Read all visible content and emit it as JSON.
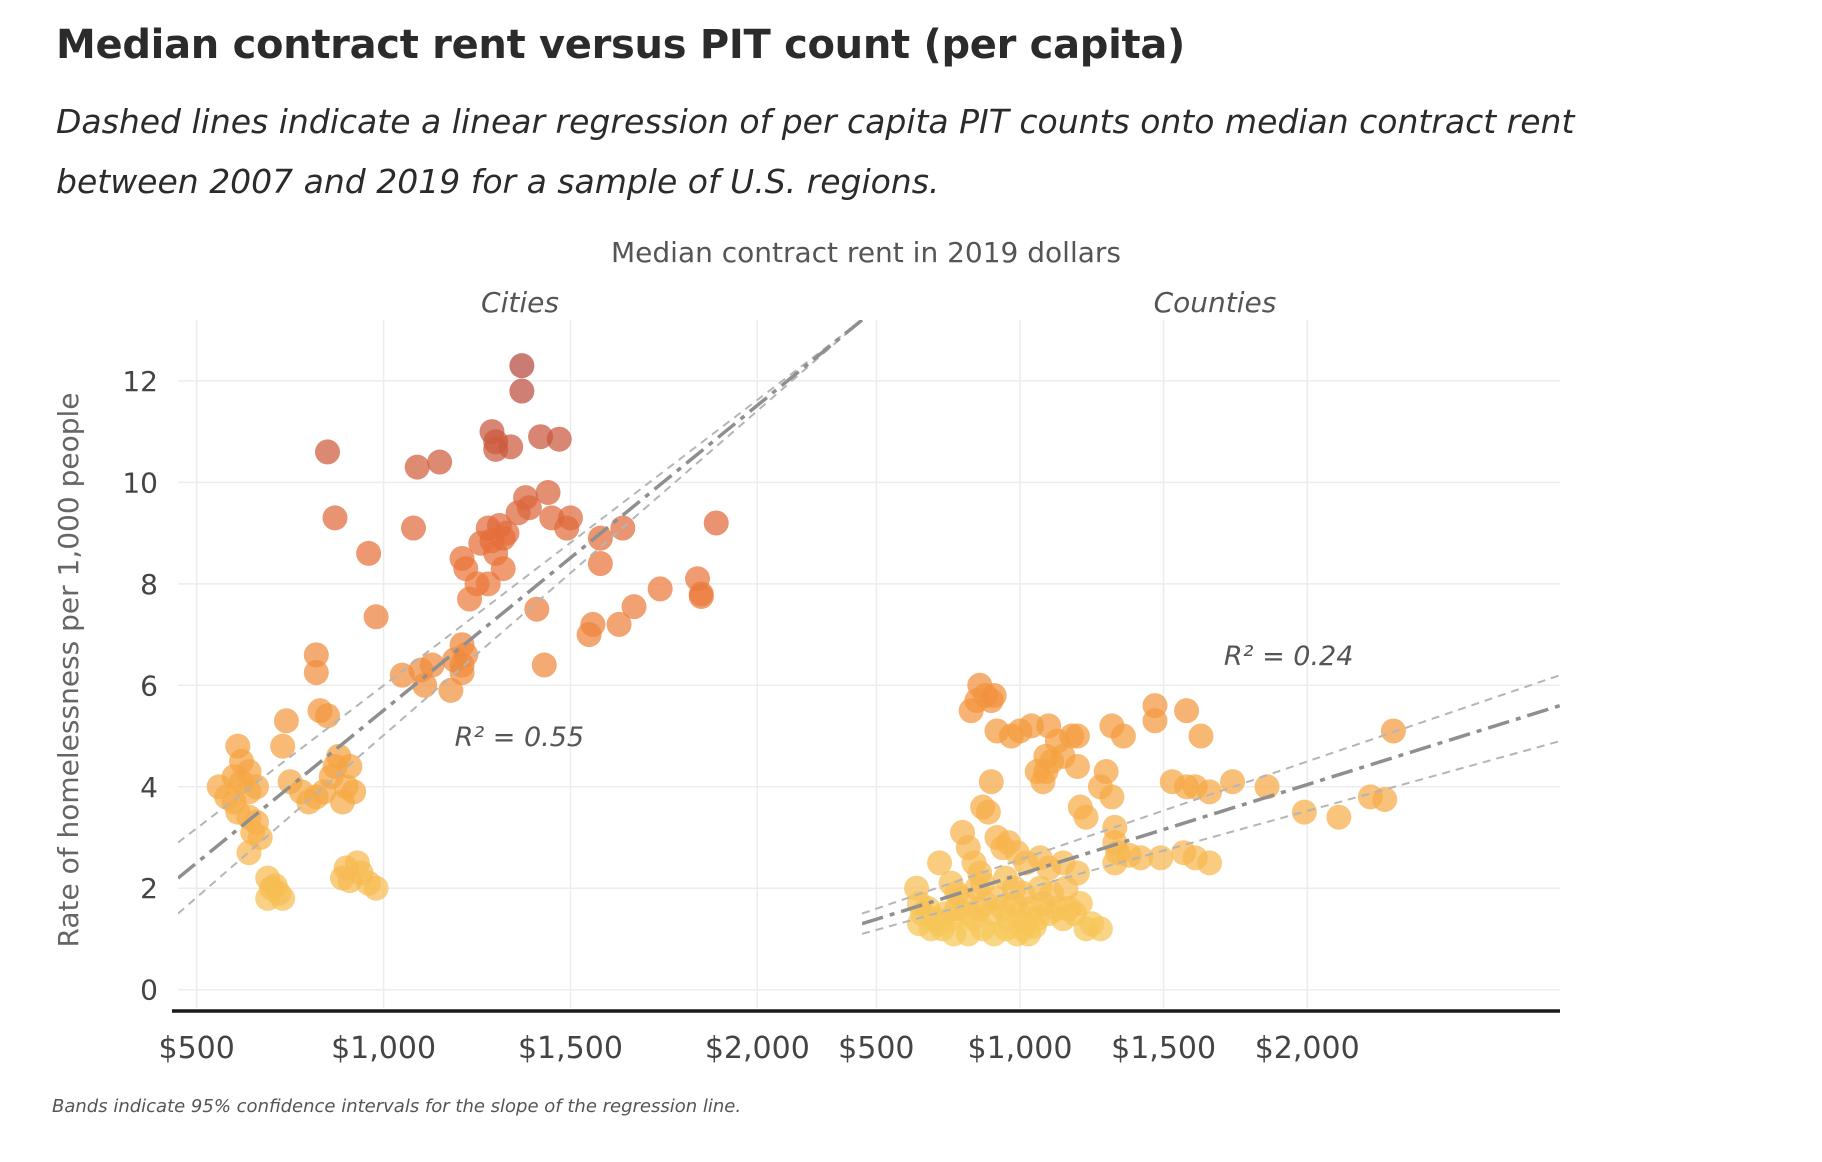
{
  "title": "Median contract rent versus PIT count (per capita)",
  "subtitle": "Dashed lines indicate a linear regression of per capita PIT counts onto median contract rent between 2007 and 2019 for a sample of U.S. regions.",
  "footnote": "Bands indicate 95% confidence intervals for the slope of the regression line.",
  "chart_data": {
    "type": "scatter",
    "xlabel": "Median contract rent in 2019 dollars",
    "ylabel": "Rate of homelessness per 1,000 people",
    "y_ticks": [
      "0",
      "2",
      "4",
      "6",
      "8",
      "10",
      "12"
    ],
    "x_ticks": [
      "$500",
      "$1,000",
      "$1,500",
      "$2,000"
    ],
    "grid": true,
    "color_scale": [
      "#f7c85a",
      "#f59f3f",
      "#e9713a",
      "#b6493f"
    ],
    "panels": [
      {
        "name": "Cities",
        "xlim": [
          450,
          2280
        ],
        "ylim": [
          -0.4,
          13.2
        ],
        "r2_label": "R² = 0.55",
        "r2_pos": [
          1190,
          4.8
        ],
        "regression": {
          "x0": 450,
          "x1": 2280,
          "y0": 2.2,
          "y1": 13.2,
          "upper0": 2.9,
          "upper1": 13.2,
          "lower0": 1.5,
          "lower1": 13.2
        },
        "points": [
          [
            1370,
            12.3
          ],
          [
            1370,
            11.8
          ],
          [
            850,
            10.6
          ],
          [
            1090,
            10.3
          ],
          [
            1150,
            10.4
          ],
          [
            1290,
            11.0
          ],
          [
            1300,
            10.8
          ],
          [
            1300,
            10.65
          ],
          [
            1340,
            10.7
          ],
          [
            1420,
            10.9
          ],
          [
            1470,
            10.85
          ],
          [
            870,
            9.3
          ],
          [
            1080,
            9.1
          ],
          [
            960,
            8.6
          ],
          [
            980,
            7.35
          ],
          [
            1380,
            9.7
          ],
          [
            1390,
            9.5
          ],
          [
            1360,
            9.4
          ],
          [
            1440,
            9.8
          ],
          [
            1450,
            9.3
          ],
          [
            1490,
            9.1
          ],
          [
            1500,
            9.3
          ],
          [
            1580,
            8.9
          ],
          [
            1640,
            9.1
          ],
          [
            1890,
            9.2
          ],
          [
            1280,
            9.1
          ],
          [
            1310,
            9.15
          ],
          [
            1330,
            9.0
          ],
          [
            1260,
            8.8
          ],
          [
            1290,
            8.85
          ],
          [
            1300,
            8.6
          ],
          [
            1320,
            8.9
          ],
          [
            1210,
            8.5
          ],
          [
            1220,
            8.3
          ],
          [
            1250,
            8.0
          ],
          [
            1280,
            8.0
          ],
          [
            1320,
            8.3
          ],
          [
            1580,
            8.4
          ],
          [
            1840,
            8.1
          ],
          [
            1850,
            7.8
          ],
          [
            1850,
            7.75
          ],
          [
            1740,
            7.9
          ],
          [
            1670,
            7.55
          ],
          [
            1630,
            7.2
          ],
          [
            1560,
            7.2
          ],
          [
            1550,
            7.0
          ],
          [
            1410,
            7.5
          ],
          [
            1230,
            7.7
          ],
          [
            1210,
            6.8
          ],
          [
            1220,
            6.6
          ],
          [
            1210,
            6.4
          ],
          [
            1210,
            6.25
          ],
          [
            1190,
            6.5
          ],
          [
            1180,
            5.9
          ],
          [
            1130,
            6.4
          ],
          [
            1100,
            6.3
          ],
          [
            1110,
            6.0
          ],
          [
            1050,
            6.2
          ],
          [
            1430,
            6.4
          ],
          [
            820,
            6.6
          ],
          [
            820,
            6.25
          ],
          [
            830,
            5.5
          ],
          [
            850,
            5.4
          ],
          [
            740,
            5.3
          ],
          [
            730,
            4.8
          ],
          [
            610,
            4.8
          ],
          [
            620,
            4.5
          ],
          [
            640,
            4.3
          ],
          [
            600,
            4.2
          ],
          [
            620,
            4.1
          ],
          [
            560,
            4.0
          ],
          [
            580,
            3.8
          ],
          [
            600,
            3.7
          ],
          [
            640,
            3.9
          ],
          [
            660,
            4.0
          ],
          [
            610,
            3.5
          ],
          [
            640,
            3.4
          ],
          [
            650,
            3.1
          ],
          [
            660,
            3.3
          ],
          [
            670,
            3.0
          ],
          [
            640,
            2.7
          ],
          [
            750,
            4.1
          ],
          [
            780,
            3.9
          ],
          [
            800,
            3.7
          ],
          [
            820,
            3.8
          ],
          [
            840,
            3.9
          ],
          [
            860,
            4.2
          ],
          [
            870,
            4.4
          ],
          [
            880,
            4.6
          ],
          [
            890,
            3.7
          ],
          [
            910,
            4.4
          ],
          [
            920,
            3.9
          ],
          [
            900,
            4.0
          ],
          [
            690,
            2.2
          ],
          [
            700,
            2.0
          ],
          [
            690,
            1.8
          ],
          [
            720,
            1.9
          ],
          [
            730,
            1.8
          ],
          [
            710,
            2.05
          ],
          [
            890,
            2.2
          ],
          [
            900,
            2.4
          ],
          [
            930,
            2.5
          ],
          [
            960,
            2.1
          ],
          [
            980,
            2.0
          ],
          [
            940,
            2.3
          ],
          [
            910,
            2.15
          ]
        ]
      },
      {
        "name": "Counties",
        "xlim": [
          450,
          2880
        ],
        "ylim": [
          -0.4,
          13.2
        ],
        "r2_label": "R² = 0.24",
        "r2_pos": [
          1710,
          6.4
        ],
        "regression": {
          "x0": 450,
          "x1": 2880,
          "y0": 1.3,
          "y1": 5.6,
          "upper0": 1.5,
          "upper1": 6.2,
          "lower0": 1.1,
          "lower1": 4.9
        },
        "points": [
          [
            860,
            6.0
          ],
          [
            880,
            5.8
          ],
          [
            850,
            5.7
          ],
          [
            900,
            5.7
          ],
          [
            910,
            5.8
          ],
          [
            830,
            5.5
          ],
          [
            920,
            5.1
          ],
          [
            970,
            5.0
          ],
          [
            1000,
            5.1
          ],
          [
            1040,
            5.2
          ],
          [
            1100,
            5.2
          ],
          [
            1130,
            4.9
          ],
          [
            1180,
            5.0
          ],
          [
            1200,
            5.0
          ],
          [
            1090,
            4.6
          ],
          [
            1110,
            4.5
          ],
          [
            1060,
            4.3
          ],
          [
            1080,
            4.1
          ],
          [
            1090,
            4.3
          ],
          [
            1150,
            4.6
          ],
          [
            1200,
            4.4
          ],
          [
            1320,
            5.2
          ],
          [
            1360,
            5.0
          ],
          [
            1470,
            5.6
          ],
          [
            1470,
            5.3
          ],
          [
            1580,
            5.5
          ],
          [
            1630,
            5.0
          ],
          [
            1530,
            4.1
          ],
          [
            1580,
            4.0
          ],
          [
            1610,
            4.0
          ],
          [
            1660,
            3.9
          ],
          [
            1740,
            4.1
          ],
          [
            1860,
            4.0
          ],
          [
            1990,
            3.5
          ],
          [
            2110,
            3.4
          ],
          [
            2220,
            3.8
          ],
          [
            2270,
            3.75
          ],
          [
            2300,
            5.1
          ],
          [
            1210,
            3.6
          ],
          [
            1230,
            3.4
          ],
          [
            1280,
            4.0
          ],
          [
            1300,
            4.3
          ],
          [
            1320,
            3.8
          ],
          [
            1330,
            3.2
          ],
          [
            1330,
            2.9
          ],
          [
            1340,
            2.7
          ],
          [
            1380,
            2.65
          ],
          [
            1420,
            2.6
          ],
          [
            1490,
            2.6
          ],
          [
            1570,
            2.7
          ],
          [
            1610,
            2.6
          ],
          [
            1660,
            2.5
          ],
          [
            1330,
            2.5
          ],
          [
            900,
            4.1
          ],
          [
            870,
            3.6
          ],
          [
            890,
            3.5
          ],
          [
            920,
            3.0
          ],
          [
            940,
            2.8
          ],
          [
            960,
            2.9
          ],
          [
            990,
            2.7
          ],
          [
            1020,
            2.5
          ],
          [
            1070,
            2.6
          ],
          [
            1100,
            2.4
          ],
          [
            1150,
            2.5
          ],
          [
            1200,
            2.3
          ],
          [
            800,
            3.1
          ],
          [
            820,
            2.8
          ],
          [
            840,
            2.5
          ],
          [
            860,
            2.3
          ],
          [
            720,
            2.5
          ],
          [
            640,
            2.0
          ],
          [
            650,
            1.7
          ],
          [
            660,
            1.5
          ],
          [
            680,
            1.6
          ],
          [
            700,
            1.4
          ],
          [
            720,
            1.3
          ],
          [
            740,
            1.5
          ],
          [
            760,
            1.4
          ],
          [
            780,
            1.6
          ],
          [
            800,
            1.8
          ],
          [
            820,
            1.5
          ],
          [
            840,
            1.4
          ],
          [
            860,
            1.6
          ],
          [
            880,
            1.7
          ],
          [
            900,
            1.5
          ],
          [
            920,
            1.8
          ],
          [
            940,
            1.6
          ],
          [
            960,
            1.4
          ],
          [
            980,
            1.7
          ],
          [
            1000,
            1.5
          ],
          [
            1020,
            1.3
          ],
          [
            1040,
            1.6
          ],
          [
            1060,
            1.4
          ],
          [
            1080,
            1.7
          ],
          [
            1100,
            1.5
          ],
          [
            1130,
            1.6
          ],
          [
            1150,
            1.4
          ],
          [
            1170,
            1.6
          ],
          [
            1190,
            1.5
          ],
          [
            1210,
            1.7
          ],
          [
            1230,
            1.2
          ],
          [
            1250,
            1.3
          ],
          [
            1280,
            1.2
          ],
          [
            650,
            1.3
          ],
          [
            690,
            1.2
          ],
          [
            730,
            1.2
          ],
          [
            770,
            1.1
          ],
          [
            820,
            1.1
          ],
          [
            870,
            1.2
          ],
          [
            910,
            1.1
          ],
          [
            950,
            1.2
          ],
          [
            990,
            1.1
          ],
          [
            1010,
            1.2
          ],
          [
            1030,
            1.1
          ],
          [
            1050,
            1.25
          ],
          [
            760,
            2.1
          ],
          [
            780,
            1.9
          ],
          [
            850,
            2.0
          ],
          [
            870,
            2.1
          ],
          [
            950,
            2.2
          ],
          [
            980,
            2.0
          ],
          [
            1010,
            1.9
          ],
          [
            1070,
            2.0
          ],
          [
            1110,
            1.9
          ],
          [
            1160,
            2.0
          ]
        ]
      }
    ]
  }
}
